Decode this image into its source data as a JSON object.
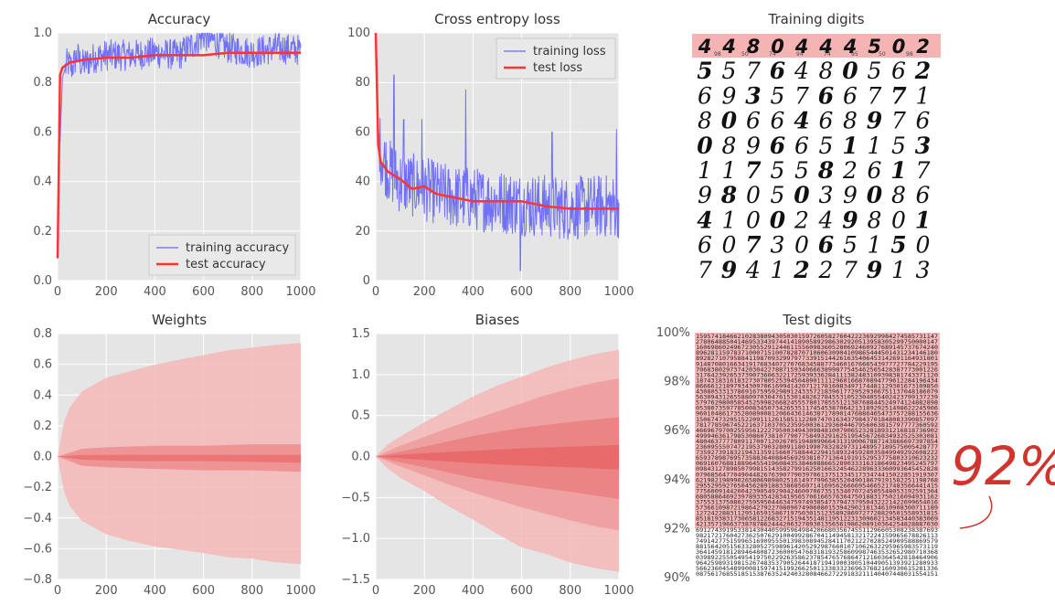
{
  "chart_data": [
    {
      "type": "line",
      "title": "Accuracy",
      "xlim": [
        0,
        1000
      ],
      "ylim": [
        0.0,
        1.0
      ],
      "xticks": [
        0,
        200,
        400,
        600,
        800,
        1000
      ],
      "yticks": [
        0.0,
        0.2,
        0.4,
        0.6,
        0.8,
        1.0
      ],
      "grid": true,
      "legend_position": "bottom-right",
      "series": [
        {
          "name": "training accuracy",
          "color": "#4848ff",
          "x": [
            0,
            5,
            10,
            20,
            40,
            60,
            80,
            100,
            150,
            200,
            300,
            400,
            500,
            600,
            700,
            800,
            900,
            1000
          ],
          "values": [
            0.1,
            0.71,
            0.56,
            0.82,
            0.88,
            0.86,
            0.91,
            0.87,
            0.9,
            0.91,
            0.91,
            0.92,
            0.91,
            0.99,
            0.94,
            0.92,
            0.94,
            0.93
          ],
          "noise_band": [
            0.84,
            0.98
          ]
        },
        {
          "name": "test accuracy",
          "color": "#ff3333",
          "x": [
            0,
            10,
            20,
            50,
            100,
            200,
            300,
            400,
            500,
            600,
            700,
            800,
            900,
            1000
          ],
          "values": [
            0.09,
            0.83,
            0.86,
            0.88,
            0.89,
            0.9,
            0.9,
            0.91,
            0.91,
            0.91,
            0.92,
            0.92,
            0.92,
            0.92
          ]
        }
      ]
    },
    {
      "type": "line",
      "title": "Cross entropy loss",
      "xlim": [
        0,
        1000
      ],
      "ylim": [
        0,
        100
      ],
      "xticks": [
        0,
        200,
        400,
        600,
        800,
        1000
      ],
      "yticks": [
        0,
        20,
        40,
        60,
        80,
        100
      ],
      "grid": true,
      "legend_position": "top-right",
      "series": [
        {
          "name": "training loss",
          "color": "#4848ff",
          "x": [
            0,
            10,
            20,
            50,
            100,
            200,
            300,
            400,
            500,
            600,
            700,
            800,
            900,
            1000
          ],
          "values": [
            100,
            62,
            52,
            45,
            40,
            37,
            34,
            33,
            32,
            31,
            30,
            29,
            30,
            30
          ],
          "spikes": [
            {
              "x": 75,
              "y": 83
            },
            {
              "x": 115,
              "y": 65
            },
            {
              "x": 190,
              "y": 65
            },
            {
              "x": 370,
              "y": 77
            },
            {
              "x": 595,
              "y": 4
            },
            {
              "x": 725,
              "y": 60
            },
            {
              "x": 990,
              "y": 61
            }
          ]
        },
        {
          "name": "test loss",
          "color": "#ff3333",
          "x": [
            0,
            10,
            20,
            50,
            100,
            150,
            200,
            250,
            300,
            400,
            500,
            600,
            700,
            800,
            900,
            1000
          ],
          "values": [
            100,
            55,
            48,
            44,
            41,
            37,
            38,
            35,
            34,
            32,
            32,
            32,
            30,
            29,
            29,
            29
          ]
        }
      ]
    },
    {
      "type": "image",
      "title": "Training digits",
      "header_row": {
        "digits": "4 4 8 0 4 4 4 5 0 2",
        "index_labels": [
          "98",
          "50",
          "74",
          "94",
          "74",
          "95",
          "50",
          "98"
        ]
      },
      "rows": [
        "5 5 7 6 4 8 0 5 6 2",
        "6 9 3 5 7 6 6 7 7 1",
        "8 0 6 6 4 6 8 9 7 6",
        "0 8 9 6 6 5 1 1 5 3",
        "1 1 7 5 5 8 2 6 1 7",
        "9 8 0 5 0 3 9 0 8 6",
        "4 1 0 0 2 4 9 8 0 1",
        "6 0 7 3 0 6 5 1 5 0",
        "7 9 4 1 2 2 7 9 1 3"
      ]
    },
    {
      "type": "area",
      "title": "Weights",
      "xlim": [
        0,
        1000
      ],
      "ylim": [
        -0.8,
        0.8
      ],
      "xticks": [
        0,
        200,
        400,
        600,
        800,
        1000
      ],
      "yticks": [
        -0.8,
        -0.6,
        -0.4,
        -0.2,
        0.0,
        0.2,
        0.4,
        0.6,
        0.8
      ],
      "grid": true,
      "bands": [
        {
          "x": [
            0,
            25,
            50,
            100,
            200,
            300,
            400,
            500,
            600,
            700,
            800,
            900,
            1000
          ],
          "upper": [
            0.0,
            0.22,
            0.32,
            0.42,
            0.51,
            0.56,
            0.6,
            0.63,
            0.66,
            0.69,
            0.71,
            0.73,
            0.74
          ],
          "lower": [
            0.0,
            -0.22,
            -0.32,
            -0.42,
            -0.51,
            -0.55,
            -0.58,
            -0.61,
            -0.63,
            -0.65,
            -0.67,
            -0.69,
            -0.7
          ],
          "color": "#f4b7b7"
        },
        {
          "x": [
            0,
            100,
            200,
            400,
            600,
            800,
            1000
          ],
          "upper": [
            0.0,
            0.05,
            0.06,
            0.07,
            0.07,
            0.08,
            0.08
          ],
          "lower": [
            0.0,
            -0.06,
            -0.07,
            -0.08,
            -0.09,
            -0.09,
            -0.1
          ],
          "color": "#ee8d8d"
        },
        {
          "x": [
            0,
            100,
            300,
            600,
            1000
          ],
          "upper": [
            0.0,
            0.01,
            0.01,
            0.01,
            0.01
          ],
          "lower": [
            0.0,
            -0.02,
            -0.03,
            -0.03,
            -0.04
          ],
          "color": "#ea7070"
        }
      ]
    },
    {
      "type": "area",
      "title": "Biases",
      "xlim": [
        0,
        1000
      ],
      "ylim": [
        -1.5,
        1.5
      ],
      "xticks": [
        0,
        200,
        400,
        600,
        800,
        1000
      ],
      "yticks": [
        -1.5,
        -1.0,
        -0.5,
        0.0,
        0.5,
        1.0,
        1.5
      ],
      "grid": true,
      "bands": [
        {
          "x": [
            0,
            50,
            100,
            200,
            300,
            400,
            500,
            600,
            700,
            800,
            900,
            1000
          ],
          "upper": [
            0.0,
            0.15,
            0.25,
            0.42,
            0.58,
            0.73,
            0.87,
            0.98,
            1.08,
            1.17,
            1.24,
            1.3
          ],
          "lower": [
            0.0,
            -0.14,
            -0.25,
            -0.42,
            -0.6,
            -0.78,
            -0.95,
            -1.1,
            -1.2,
            -1.3,
            -1.36,
            -1.4
          ],
          "color": "#f4b7b7"
        },
        {
          "x": [
            0,
            100,
            200,
            300,
            400,
            500,
            600,
            700,
            800,
            900,
            1000
          ],
          "upper": [
            0.0,
            0.13,
            0.24,
            0.35,
            0.45,
            0.55,
            0.65,
            0.75,
            0.83,
            0.9,
            0.95
          ],
          "lower": [
            0.0,
            -0.12,
            -0.23,
            -0.34,
            -0.44,
            -0.53,
            -0.62,
            -0.7,
            -0.78,
            -0.85,
            -0.9
          ],
          "color": "#ef9c9c"
        },
        {
          "x": [
            0,
            100,
            200,
            400,
            600,
            800,
            1000
          ],
          "upper": [
            0.0,
            0.06,
            0.12,
            0.25,
            0.35,
            0.42,
            0.48
          ],
          "lower": [
            0.0,
            -0.07,
            -0.13,
            -0.26,
            -0.35,
            -0.43,
            -0.52
          ],
          "color": "#ea7f7f"
        },
        {
          "x": [
            0,
            200,
            400,
            600,
            800,
            1000
          ],
          "upper": [
            0.0,
            0.04,
            0.07,
            0.1,
            0.12,
            0.14
          ],
          "lower": [
            0.0,
            -0.04,
            -0.08,
            -0.11,
            -0.13,
            -0.16
          ],
          "color": "#e76565"
        }
      ]
    },
    {
      "type": "image",
      "title": "Test digits",
      "ylim": [
        90,
        100
      ],
      "yticks": [
        "90%",
        "92%",
        "94%",
        "96%",
        "98%",
        "100%"
      ],
      "highlighted_fraction": 92
    }
  ],
  "annotation": {
    "text": "92%",
    "color": "#d0342c"
  }
}
